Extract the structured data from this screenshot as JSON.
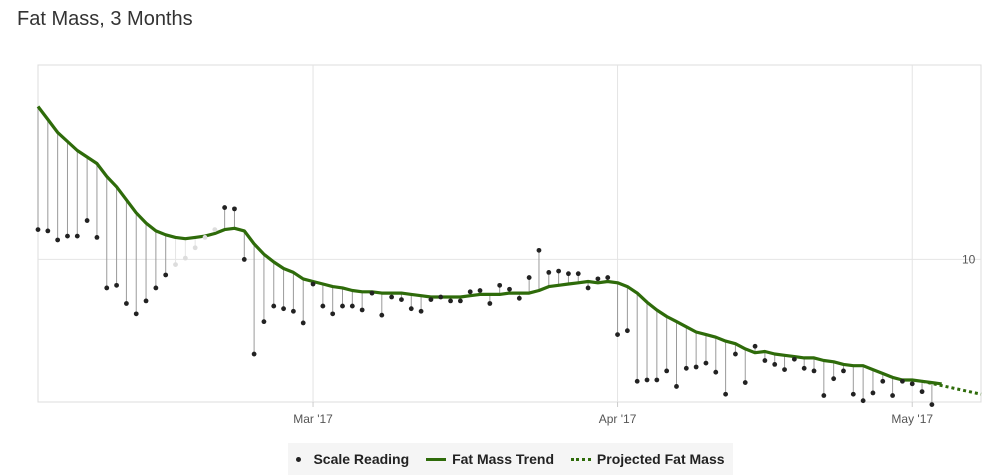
{
  "title": "Fat Mass, 3 Months",
  "chart_data": {
    "type": "line",
    "title": "Fat Mass, 3 Months",
    "x_ticks": [
      {
        "label": "Mar '17",
        "day": 28
      },
      {
        "label": "Apr '17",
        "day": 59
      },
      {
        "label": "May '17",
        "day": 89
      }
    ],
    "y_ticks": [
      {
        "label": "10",
        "value": 10
      }
    ],
    "x_range": [
      0,
      96
    ],
    "ylim": [
      8.9,
      11.5
    ],
    "grid": true,
    "legend": {
      "position": "bottom-center",
      "items": [
        "Scale Reading",
        "Fat Mass Trend",
        "Projected Fat Mass"
      ]
    },
    "series": [
      {
        "name": "Scale Reading",
        "kind": "scatter",
        "color": "#222222",
        "faded_color": "#dddddd",
        "faded_days": [
          14,
          15,
          16,
          17,
          18
        ],
        "points": [
          [
            0,
            10.23
          ],
          [
            1,
            10.22
          ],
          [
            2,
            10.15
          ],
          [
            3,
            10.18
          ],
          [
            4,
            10.18
          ],
          [
            5,
            10.3
          ],
          [
            6,
            10.17
          ],
          [
            7,
            9.78
          ],
          [
            8,
            9.8
          ],
          [
            9,
            9.66
          ],
          [
            10,
            9.58
          ],
          [
            11,
            9.68
          ],
          [
            12,
            9.78
          ],
          [
            13,
            9.88
          ],
          [
            14,
            9.96
          ],
          [
            15,
            10.01
          ],
          [
            16,
            10.09
          ],
          [
            17,
            10.17
          ],
          [
            18,
            10.23
          ],
          [
            19,
            10.4
          ],
          [
            20,
            10.39
          ],
          [
            21,
            10.0
          ],
          [
            22,
            9.27
          ],
          [
            23,
            9.52
          ],
          [
            24,
            9.64
          ],
          [
            25,
            9.62
          ],
          [
            26,
            9.6
          ],
          [
            27,
            9.51
          ],
          [
            28,
            9.81
          ],
          [
            29,
            9.64
          ],
          [
            30,
            9.58
          ],
          [
            31,
            9.64
          ],
          [
            32,
            9.64
          ],
          [
            33,
            9.61
          ],
          [
            34,
            9.74
          ],
          [
            35,
            9.57
          ],
          [
            36,
            9.71
          ],
          [
            37,
            9.69
          ],
          [
            38,
            9.62
          ],
          [
            39,
            9.6
          ],
          [
            40,
            9.69
          ],
          [
            41,
            9.71
          ],
          [
            42,
            9.68
          ],
          [
            43,
            9.68
          ],
          [
            44,
            9.75
          ],
          [
            45,
            9.76
          ],
          [
            46,
            9.66
          ],
          [
            47,
            9.8
          ],
          [
            48,
            9.77
          ],
          [
            49,
            9.7
          ],
          [
            50,
            9.86
          ],
          [
            51,
            10.07
          ],
          [
            52,
            9.9
          ],
          [
            53,
            9.91
          ],
          [
            54,
            9.89
          ],
          [
            55,
            9.89
          ],
          [
            56,
            9.78
          ],
          [
            57,
            9.85
          ],
          [
            58,
            9.86
          ],
          [
            59,
            9.42
          ],
          [
            60,
            9.45
          ],
          [
            61,
            9.06
          ],
          [
            62,
            9.07
          ],
          [
            63,
            9.07
          ],
          [
            64,
            9.14
          ],
          [
            65,
            9.02
          ],
          [
            66,
            9.16
          ],
          [
            67,
            9.17
          ],
          [
            68,
            9.2
          ],
          [
            69,
            9.13
          ],
          [
            70,
            8.96
          ],
          [
            71,
            9.27
          ],
          [
            72,
            9.05
          ],
          [
            73,
            9.33
          ],
          [
            74,
            9.22
          ],
          [
            75,
            9.19
          ],
          [
            76,
            9.15
          ],
          [
            77,
            9.23
          ],
          [
            78,
            9.16
          ],
          [
            79,
            9.14
          ],
          [
            80,
            8.95
          ],
          [
            81,
            9.08
          ],
          [
            82,
            9.14
          ],
          [
            83,
            8.96
          ],
          [
            84,
            8.91
          ],
          [
            85,
            8.97
          ],
          [
            86,
            9.06
          ],
          [
            87,
            8.95
          ],
          [
            88,
            9.06
          ],
          [
            89,
            9.04
          ],
          [
            90,
            8.98
          ],
          [
            91,
            8.88
          ]
        ]
      },
      {
        "name": "Fat Mass Trend",
        "kind": "line",
        "color": "#2e6b0a",
        "points": [
          [
            0,
            11.18
          ],
          [
            1,
            11.08
          ],
          [
            2,
            10.98
          ],
          [
            3,
            10.91
          ],
          [
            4,
            10.84
          ],
          [
            5,
            10.79
          ],
          [
            6,
            10.74
          ],
          [
            7,
            10.64
          ],
          [
            8,
            10.56
          ],
          [
            9,
            10.46
          ],
          [
            10,
            10.36
          ],
          [
            11,
            10.28
          ],
          [
            12,
            10.22
          ],
          [
            13,
            10.19
          ],
          [
            14,
            10.17
          ],
          [
            15,
            10.16
          ],
          [
            16,
            10.17
          ],
          [
            17,
            10.18
          ],
          [
            18,
            10.2
          ],
          [
            19,
            10.23
          ],
          [
            20,
            10.24
          ],
          [
            21,
            10.22
          ],
          [
            22,
            10.12
          ],
          [
            23,
            10.04
          ],
          [
            24,
            9.98
          ],
          [
            25,
            9.93
          ],
          [
            26,
            9.9
          ],
          [
            27,
            9.85
          ],
          [
            28,
            9.83
          ],
          [
            29,
            9.81
          ],
          [
            30,
            9.79
          ],
          [
            31,
            9.78
          ],
          [
            32,
            9.76
          ],
          [
            33,
            9.75
          ],
          [
            34,
            9.75
          ],
          [
            35,
            9.74
          ],
          [
            36,
            9.74
          ],
          [
            37,
            9.74
          ],
          [
            38,
            9.73
          ],
          [
            39,
            9.72
          ],
          [
            40,
            9.71
          ],
          [
            41,
            9.71
          ],
          [
            42,
            9.71
          ],
          [
            43,
            9.71
          ],
          [
            44,
            9.72
          ],
          [
            45,
            9.73
          ],
          [
            46,
            9.73
          ],
          [
            47,
            9.73
          ],
          [
            48,
            9.74
          ],
          [
            49,
            9.74
          ],
          [
            50,
            9.74
          ],
          [
            51,
            9.76
          ],
          [
            52,
            9.79
          ],
          [
            53,
            9.8
          ],
          [
            54,
            9.81
          ],
          [
            55,
            9.82
          ],
          [
            56,
            9.83
          ],
          [
            57,
            9.82
          ],
          [
            58,
            9.83
          ],
          [
            59,
            9.82
          ],
          [
            60,
            9.79
          ],
          [
            61,
            9.74
          ],
          [
            62,
            9.67
          ],
          [
            63,
            9.61
          ],
          [
            64,
            9.56
          ],
          [
            65,
            9.52
          ],
          [
            66,
            9.48
          ],
          [
            67,
            9.44
          ],
          [
            68,
            9.42
          ],
          [
            69,
            9.4
          ],
          [
            70,
            9.37
          ],
          [
            71,
            9.35
          ],
          [
            72,
            9.31
          ],
          [
            73,
            9.28
          ],
          [
            74,
            9.29
          ],
          [
            75,
            9.27
          ],
          [
            76,
            9.26
          ],
          [
            77,
            9.25
          ],
          [
            78,
            9.24
          ],
          [
            79,
            9.24
          ],
          [
            80,
            9.22
          ],
          [
            81,
            9.21
          ],
          [
            82,
            9.19
          ],
          [
            83,
            9.18
          ],
          [
            84,
            9.18
          ],
          [
            85,
            9.15
          ],
          [
            86,
            9.12
          ],
          [
            87,
            9.09
          ],
          [
            88,
            9.07
          ],
          [
            89,
            9.07
          ],
          [
            90,
            9.06
          ],
          [
            91,
            9.05
          ],
          [
            92,
            9.04
          ]
        ]
      },
      {
        "name": "Projected Fat Mass",
        "kind": "dotted-line",
        "color": "#2e6b0a",
        "points": [
          [
            90,
            9.06
          ],
          [
            96,
            8.96
          ]
        ]
      }
    ]
  },
  "legend_labels": {
    "scale": "Scale Reading",
    "trend": "Fat Mass Trend",
    "projected": "Projected Fat Mass"
  }
}
